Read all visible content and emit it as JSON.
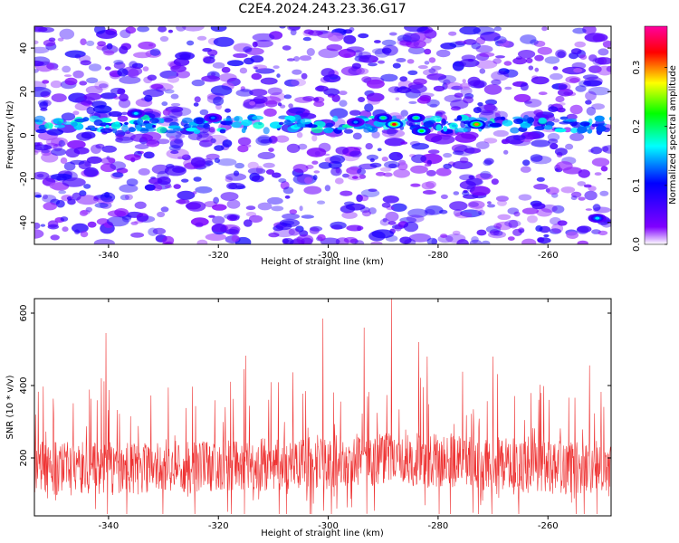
{
  "title": "C2E4.2024.243.23.36.G17",
  "chart_data": [
    {
      "type": "heatmap",
      "xlabel": "Height of straight line (km)",
      "ylabel": "Frequency (Hz)",
      "xlim": [
        -353.5,
        -248.5
      ],
      "ylim": [
        -50,
        50
      ],
      "x_ticks": [
        -340,
        -320,
        -300,
        -280,
        -260
      ],
      "y_ticks": [
        -40,
        -20,
        0,
        20,
        40
      ],
      "colorbar": {
        "label": "Normalized spectral amplitude",
        "range": [
          0.0,
          0.37
        ],
        "ticks": [
          0.0,
          0.1,
          0.2,
          0.3
        ],
        "tick_labels": [
          "0.0",
          "0.1",
          "0.2",
          "0.3"
        ],
        "colormap": [
          "#ffffff",
          "#8000ff",
          "#0000ff",
          "#00ffff",
          "#00ff00",
          "#ffff00",
          "#ff0000",
          "#ff00a0"
        ]
      },
      "band": {
        "frequency_hz": 5,
        "description_values": "strong narrow band near 5 Hz"
      },
      "hotspots": [
        {
          "x": -335,
          "y": 10,
          "value": 0.16
        },
        {
          "x": -321,
          "y": 8,
          "value": 0.13
        },
        {
          "x": -295,
          "y": 6,
          "value": 0.14
        },
        {
          "x": -290,
          "y": 8,
          "value": 0.2
        },
        {
          "x": -288,
          "y": 5,
          "value": 0.33
        },
        {
          "x": -284,
          "y": 8,
          "value": 0.2
        },
        {
          "x": -283,
          "y": 2,
          "value": 0.22
        },
        {
          "x": -273,
          "y": 5,
          "value": 0.3
        },
        {
          "x": -251,
          "y": -38,
          "value": 0.16
        }
      ]
    },
    {
      "type": "line",
      "xlabel": "Height of straight line (km)",
      "ylabel": "SNR (10 * v/v)",
      "xlim": [
        -353.5,
        -248.5
      ],
      "ylim": [
        40,
        640
      ],
      "x_ticks": [
        -340,
        -320,
        -300,
        -280,
        -260
      ],
      "y_ticks": [
        200,
        400,
        600
      ],
      "color": "#ee3333",
      "sample_count": 1500,
      "baseline": 170,
      "peaks": [
        {
          "x": -340.5,
          "y": 545
        },
        {
          "x": -301,
          "y": 585
        },
        {
          "x": -293.5,
          "y": 560
        },
        {
          "x": -288.5,
          "y": 640
        },
        {
          "x": -283.5,
          "y": 520
        },
        {
          "x": -270,
          "y": 480
        },
        {
          "x": -282,
          "y": 480
        }
      ]
    }
  ]
}
